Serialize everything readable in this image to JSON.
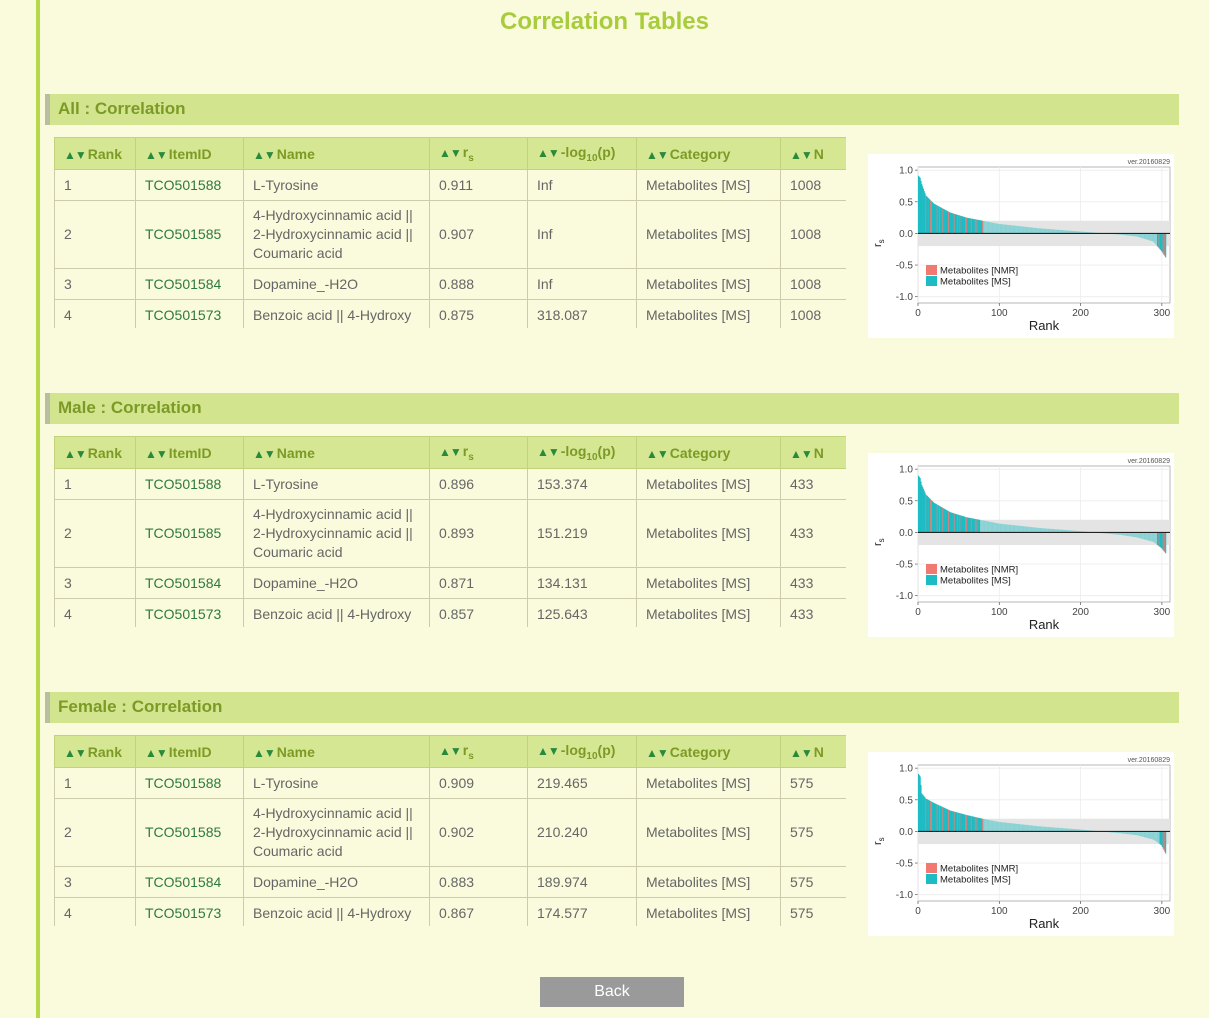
{
  "title": "Correlation Tables",
  "columns": {
    "rank": "Rank",
    "itemid": "ItemID",
    "name": "Name",
    "rs": "r",
    "rs_sub": "s",
    "log_pre": "-log",
    "log_sub": "10",
    "log_post": "(p)",
    "category": "Category",
    "n": "N"
  },
  "sort_arrows": "▲▼",
  "sections": [
    {
      "header": "All : Correlation",
      "rows": [
        {
          "rank": "1",
          "id": "TCO501588",
          "name": "L-Tyrosine",
          "rs": "0.911",
          "log": "Inf",
          "category": "Metabolites [MS]",
          "n": "1008"
        },
        {
          "rank": "2",
          "id": "TCO501585",
          "name": "4-Hydroxycinnamic acid || 2-Hydroxycinnamic acid || Coumaric acid",
          "rs": "0.907",
          "log": "Inf",
          "category": "Metabolites [MS]",
          "n": "1008"
        },
        {
          "rank": "3",
          "id": "TCO501584",
          "name": "Dopamine_-H2O",
          "rs": "0.888",
          "log": "Inf",
          "category": "Metabolites [MS]",
          "n": "1008"
        },
        {
          "rank": "4",
          "id": "TCO501573",
          "name": "Benzoic acid || 4-Hydroxy",
          "rs": "0.875",
          "log": "318.087",
          "category": "Metabolites [MS]",
          "n": "1008"
        }
      ]
    },
    {
      "header": "Male : Correlation",
      "rows": [
        {
          "rank": "1",
          "id": "TCO501588",
          "name": "L-Tyrosine",
          "rs": "0.896",
          "log": "153.374",
          "category": "Metabolites [MS]",
          "n": "433"
        },
        {
          "rank": "2",
          "id": "TCO501585",
          "name": "4-Hydroxycinnamic acid || 2-Hydroxycinnamic acid || Coumaric acid",
          "rs": "0.893",
          "log": "151.219",
          "category": "Metabolites [MS]",
          "n": "433"
        },
        {
          "rank": "3",
          "id": "TCO501584",
          "name": "Dopamine_-H2O",
          "rs": "0.871",
          "log": "134.131",
          "category": "Metabolites [MS]",
          "n": "433"
        },
        {
          "rank": "4",
          "id": "TCO501573",
          "name": "Benzoic acid || 4-Hydroxy",
          "rs": "0.857",
          "log": "125.643",
          "category": "Metabolites [MS]",
          "n": "433"
        }
      ]
    },
    {
      "header": "Female : Correlation",
      "rows": [
        {
          "rank": "1",
          "id": "TCO501588",
          "name": "L-Tyrosine",
          "rs": "0.909",
          "log": "219.465",
          "category": "Metabolites [MS]",
          "n": "575"
        },
        {
          "rank": "2",
          "id": "TCO501585",
          "name": "4-Hydroxycinnamic acid || 2-Hydroxycinnamic acid || Coumaric acid",
          "rs": "0.902",
          "log": "210.240",
          "category": "Metabolites [MS]",
          "n": "575"
        },
        {
          "rank": "3",
          "id": "TCO501584",
          "name": "Dopamine_-H2O",
          "rs": "0.883",
          "log": "189.974",
          "category": "Metabolites [MS]",
          "n": "575"
        },
        {
          "rank": "4",
          "id": "TCO501573",
          "name": "Benzoic acid || 4-Hydroxy",
          "rs": "0.867",
          "log": "174.577",
          "category": "Metabolites [MS]",
          "n": "575"
        }
      ]
    }
  ],
  "chart_data": [
    {
      "type": "bar",
      "version": "ver.20160829",
      "xlabel": "Rank",
      "ylabel": "r",
      "ylabel_sub": "s",
      "xlim": [
        0,
        310
      ],
      "ylim": [
        -1.1,
        1.05
      ],
      "xticks": [
        0,
        100,
        200,
        300
      ],
      "yticks": [
        1.0,
        0.5,
        0.0,
        -0.5,
        -1.0
      ],
      "ytick_labels": [
        "1.0",
        "0.5",
        "0.0",
        "-0.5",
        "-1.0"
      ],
      "n_items": 305,
      "nonsignificant_band": [
        -0.2,
        0.2
      ],
      "profile_rank": [
        1,
        3,
        5,
        10,
        20,
        40,
        60,
        80,
        100,
        150,
        200,
        250,
        270,
        290,
        300,
        305
      ],
      "profile_value": [
        0.911,
        0.88,
        0.78,
        0.6,
        0.47,
        0.33,
        0.25,
        0.2,
        0.15,
        0.08,
        0.03,
        -0.02,
        -0.05,
        -0.13,
        -0.28,
        -0.38
      ],
      "legend": [
        {
          "name": "Metabolites [NMR]",
          "color": "#f07a72"
        },
        {
          "name": "Metabolites [MS]",
          "color": "#1dbcc4"
        }
      ]
    },
    {
      "type": "bar",
      "version": "ver.20160829",
      "xlabel": "Rank",
      "ylabel": "r",
      "ylabel_sub": "s",
      "xlim": [
        0,
        310
      ],
      "ylim": [
        -1.1,
        1.05
      ],
      "xticks": [
        0,
        100,
        200,
        300
      ],
      "yticks": [
        1.0,
        0.5,
        0.0,
        -0.5,
        -1.0
      ],
      "ytick_labels": [
        "1.0",
        "0.5",
        "0.0",
        "-0.5",
        "-1.0"
      ],
      "n_items": 305,
      "nonsignificant_band": [
        -0.2,
        0.2
      ],
      "profile_rank": [
        1,
        3,
        5,
        10,
        20,
        40,
        60,
        80,
        100,
        150,
        200,
        250,
        270,
        290,
        300,
        305
      ],
      "profile_value": [
        0.896,
        0.86,
        0.75,
        0.6,
        0.47,
        0.32,
        0.24,
        0.19,
        0.14,
        0.07,
        0.02,
        -0.04,
        -0.08,
        -0.15,
        -0.25,
        -0.33
      ],
      "legend": [
        {
          "name": "Metabolites [NMR]",
          "color": "#f07a72"
        },
        {
          "name": "Metabolites [MS]",
          "color": "#1dbcc4"
        }
      ]
    },
    {
      "type": "bar",
      "version": "ver.20160829",
      "xlabel": "Rank",
      "ylabel": "r",
      "ylabel_sub": "s",
      "xlim": [
        0,
        310
      ],
      "ylim": [
        -1.1,
        1.05
      ],
      "xticks": [
        0,
        100,
        200,
        300
      ],
      "yticks": [
        1.0,
        0.5,
        0.0,
        -0.5,
        -1.0
      ],
      "ytick_labels": [
        "1.0",
        "0.5",
        "0.0",
        "-0.5",
        "-1.0"
      ],
      "n_items": 305,
      "nonsignificant_band": [
        -0.2,
        0.2
      ],
      "profile_rank": [
        1,
        3,
        5,
        10,
        20,
        40,
        60,
        80,
        100,
        150,
        200,
        250,
        270,
        290,
        300,
        305
      ],
      "profile_value": [
        0.909,
        0.87,
        0.6,
        0.52,
        0.45,
        0.33,
        0.26,
        0.2,
        0.15,
        0.08,
        0.03,
        -0.03,
        -0.06,
        -0.13,
        -0.22,
        -0.35
      ],
      "legend": [
        {
          "name": "Metabolites [NMR]",
          "color": "#f07a72"
        },
        {
          "name": "Metabolites [MS]",
          "color": "#1dbcc4"
        }
      ]
    }
  ],
  "back_label": "Back"
}
